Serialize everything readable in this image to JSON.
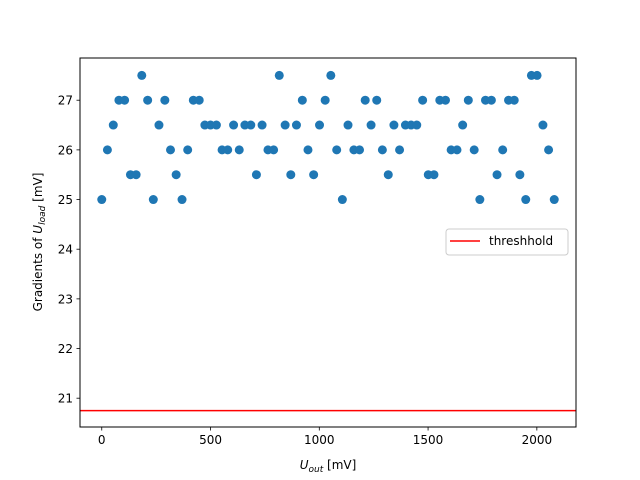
{
  "chart_data": {
    "type": "scatter",
    "xlabel": {
      "main": "U",
      "sub": "out",
      "unit": " [mV]"
    },
    "ylabel": {
      "prefix": "Gradients of ",
      "main": "U",
      "sub": "load",
      "unit": " [mV]"
    },
    "xlim": [
      -100,
      2180
    ],
    "ylim": [
      20.42,
      27.85
    ],
    "x_ticks": [
      0,
      500,
      1000,
      1500,
      2000
    ],
    "y_ticks": [
      21,
      22,
      23,
      24,
      25,
      26,
      27
    ],
    "grid": false,
    "legend": {
      "position": "center-right",
      "entries": [
        "threshhold"
      ]
    },
    "threshold": {
      "name": "threshhold",
      "value": 20.75,
      "color": "#ff0000"
    },
    "series": [
      {
        "color": "#1f77b4",
        "x": [
          0,
          26,
          53,
          79,
          105,
          132,
          158,
          184,
          211,
          237,
          263,
          290,
          316,
          342,
          369,
          395,
          421,
          448,
          474,
          500,
          527,
          553,
          579,
          606,
          632,
          658,
          685,
          711,
          737,
          764,
          790,
          816,
          843,
          869,
          895,
          922,
          948,
          974,
          1001,
          1027,
          1053,
          1080,
          1106,
          1132,
          1159,
          1185,
          1211,
          1238,
          1264,
          1290,
          1317,
          1343,
          1369,
          1396,
          1422,
          1448,
          1475,
          1501,
          1527,
          1554,
          1580,
          1606,
          1633,
          1659,
          1685,
          1712,
          1738,
          1764,
          1791,
          1817,
          1843,
          1870,
          1896,
          1922,
          1949,
          1975,
          2001,
          2028,
          2054,
          2080
        ],
        "y": [
          25,
          26,
          26.5,
          27,
          27,
          25.5,
          25.5,
          27.5,
          27,
          25,
          26.5,
          27,
          26,
          25.5,
          25,
          26,
          27,
          27,
          26.5,
          26.5,
          26.5,
          26,
          26,
          26.5,
          26,
          26.5,
          26.5,
          25.5,
          26.5,
          26,
          26,
          27.5,
          26.5,
          25.5,
          26.5,
          27,
          26,
          25.5,
          26.5,
          27,
          27.5,
          26,
          25,
          26.5,
          26,
          26,
          27,
          26.5,
          27,
          26,
          25.5,
          26.5,
          26,
          26.5,
          26.5,
          26.5,
          27,
          25.5,
          25.5,
          27,
          27,
          26,
          26,
          26.5,
          27,
          26,
          25,
          27,
          27,
          25.5,
          26,
          27,
          27,
          25.5,
          25,
          27.5,
          27.5,
          26.5,
          26,
          25
        ]
      }
    ]
  }
}
